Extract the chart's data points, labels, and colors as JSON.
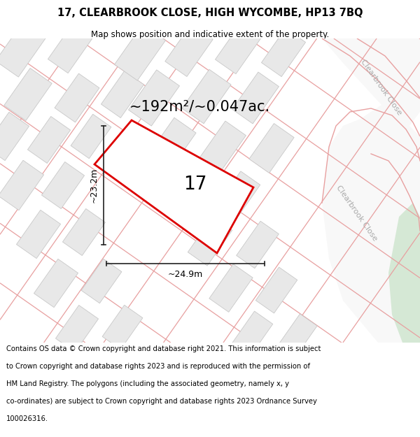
{
  "title": "17, CLEARBROOK CLOSE, HIGH WYCOMBE, HP13 7BQ",
  "subtitle": "Map shows position and indicative extent of the property.",
  "footer": "Contains OS data © Crown copyright and database right 2021. This information is subject to Crown copyright and database rights 2023 and is reproduced with the permission of HM Land Registry. The polygons (including the associated geometry, namely x, y co-ordinates) are subject to Crown copyright and database rights 2023 Ordnance Survey 100026316.",
  "area_label": "~192m²/~0.047ac.",
  "width_label": "~24.9m",
  "height_label": "~23.2m",
  "plot_number": "17",
  "map_bg": "#ffffff",
  "road_color": "#e8a0a0",
  "road_fill": "#ffffff",
  "building_fill": "#e8e8e8",
  "building_edge": "#c8c8c8",
  "plot_outline_color": "#dd0000",
  "dim_line_color": "#222222",
  "green_fill": "#d5e8d5",
  "road_label_color": "#aaaaaa",
  "street_name": "Clearbrook Close"
}
